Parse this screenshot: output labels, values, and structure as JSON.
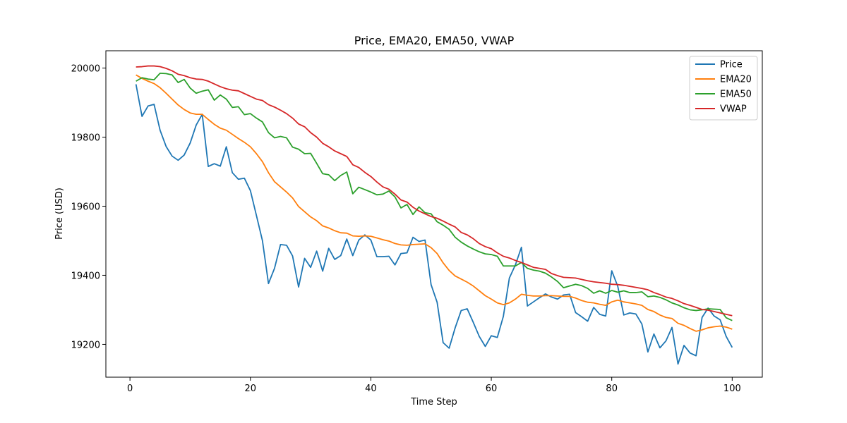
{
  "chart_data": {
    "type": "line",
    "title": "Price, EMA20, EMA50, VWAP",
    "xlabel": "Time Step",
    "ylabel": "Price (USD)",
    "xlim": [
      -4,
      105
    ],
    "ylim": [
      19105,
      20050
    ],
    "xticks": [
      0,
      20,
      40,
      60,
      80,
      100
    ],
    "yticks": [
      19200,
      19400,
      19600,
      19800,
      20000
    ],
    "legend_position": "top-right",
    "grid": false,
    "x": [
      1,
      2,
      3,
      4,
      5,
      6,
      7,
      8,
      9,
      10,
      11,
      12,
      13,
      14,
      15,
      16,
      17,
      18,
      19,
      20,
      21,
      22,
      23,
      24,
      25,
      26,
      27,
      28,
      29,
      30,
      31,
      32,
      33,
      34,
      35,
      36,
      37,
      38,
      39,
      40,
      41,
      42,
      43,
      44,
      45,
      46,
      47,
      48,
      49,
      50,
      51,
      52,
      53,
      54,
      55,
      56,
      57,
      58,
      59,
      60,
      61,
      62,
      63,
      64,
      65,
      66,
      67,
      68,
      69,
      70,
      71,
      72,
      73,
      74,
      75,
      76,
      77,
      78,
      79,
      80,
      81,
      82,
      83,
      84,
      85,
      86,
      87,
      88,
      89,
      90,
      91,
      92,
      93,
      94,
      95,
      96,
      97,
      98,
      99,
      100
    ],
    "series": [
      {
        "name": "Price",
        "color": "#1f77b4",
        "values": [
          19953,
          19860,
          19890,
          19895,
          19820,
          19773,
          19745,
          19733,
          19748,
          19783,
          19835,
          19866,
          19715,
          19723,
          19716,
          19772,
          19697,
          19678,
          19681,
          19645,
          19573,
          19500,
          19376,
          19420,
          19489,
          19487,
          19456,
          19366,
          19449,
          19423,
          19470,
          19412,
          19478,
          19446,
          19457,
          19505,
          19457,
          19502,
          19517,
          19502,
          19454,
          19454,
          19455,
          19430,
          19463,
          19465,
          19510,
          19498,
          19502,
          19373,
          19322,
          19205,
          19189,
          19248,
          19298,
          19303,
          19264,
          19223,
          19194,
          19225,
          19220,
          19281,
          19392,
          19430,
          19481,
          19311,
          19323,
          19335,
          19346,
          19337,
          19331,
          19343,
          19345,
          19292,
          19280,
          19267,
          19307,
          19287,
          19282,
          19413,
          19368,
          19285,
          19291,
          19288,
          19259,
          19178,
          19230,
          19190,
          19210,
          19249,
          19143,
          19197,
          19175,
          19167,
          19278,
          19305,
          19282,
          19271,
          19223,
          19191
        ]
      },
      {
        "name": "EMA20",
        "color": "#ff7f0e",
        "values": [
          19980,
          19970,
          19962,
          19955,
          19943,
          19927,
          19910,
          19893,
          19880,
          19870,
          19866,
          19866,
          19851,
          19837,
          19826,
          19820,
          19808,
          19796,
          19785,
          19772,
          19752,
          19729,
          19697,
          19671,
          19656,
          19641,
          19624,
          19599,
          19584,
          19569,
          19558,
          19543,
          19537,
          19529,
          19523,
          19522,
          19514,
          19513,
          19514,
          19513,
          19508,
          19503,
          19499,
          19492,
          19488,
          19487,
          19489,
          19490,
          19491,
          19480,
          19463,
          19436,
          19414,
          19398,
          19389,
          19380,
          19369,
          19355,
          19341,
          19331,
          19320,
          19315,
          19320,
          19331,
          19345,
          19342,
          19340,
          19340,
          19341,
          19341,
          19340,
          19339,
          19339,
          19334,
          19327,
          19322,
          19320,
          19316,
          19313,
          19323,
          19328,
          19323,
          19320,
          19317,
          19313,
          19301,
          19295,
          19285,
          19278,
          19275,
          19261,
          19255,
          19246,
          19238,
          19242,
          19248,
          19251,
          19253,
          19250,
          19244
        ]
      },
      {
        "name": "EMA50",
        "color": "#2ca02c",
        "values": [
          19962,
          19972,
          19968,
          19966,
          19985,
          19984,
          19980,
          19958,
          19967,
          19942,
          19927,
          19933,
          19937,
          19907,
          19922,
          19910,
          19886,
          19888,
          19865,
          19868,
          19855,
          19844,
          19813,
          19798,
          19802,
          19798,
          19771,
          19765,
          19752,
          19753,
          19724,
          19694,
          19691,
          19674,
          19689,
          19699,
          19636,
          19655,
          19648,
          19641,
          19633,
          19635,
          19644,
          19627,
          19595,
          19605,
          19576,
          19598,
          19581,
          19578,
          19555,
          19545,
          19533,
          19510,
          19496,
          19485,
          19476,
          19468,
          19462,
          19460,
          19455,
          19427,
          19427,
          19427,
          19437,
          19420,
          19415,
          19412,
          19406,
          19395,
          19382,
          19364,
          19369,
          19374,
          19370,
          19362,
          19348,
          19355,
          19348,
          19356,
          19351,
          19355,
          19350,
          19350,
          19352,
          19338,
          19340,
          19336,
          19329,
          19320,
          19314,
          19306,
          19300,
          19298,
          19300,
          19303,
          19302,
          19301,
          19277,
          19269
        ]
      },
      {
        "name": "VWAP",
        "color": "#d62728",
        "values": [
          20003,
          20004,
          20006,
          20006,
          20004,
          19999,
          19992,
          19982,
          19978,
          19972,
          19968,
          19967,
          19962,
          19954,
          19946,
          19940,
          19936,
          19934,
          19926,
          19918,
          19910,
          19906,
          19894,
          19887,
          19878,
          19868,
          19855,
          19838,
          19830,
          19813,
          19800,
          19782,
          19772,
          19760,
          19752,
          19744,
          19720,
          19712,
          19698,
          19686,
          19670,
          19656,
          19649,
          19635,
          19618,
          19612,
          19597,
          19586,
          19578,
          19570,
          19565,
          19557,
          19548,
          19540,
          19524,
          19517,
          19506,
          19492,
          19483,
          19477,
          19465,
          19455,
          19450,
          19443,
          19437,
          19430,
          19423,
          19420,
          19417,
          19405,
          19399,
          19394,
          19393,
          19392,
          19388,
          19384,
          19381,
          19379,
          19377,
          19374,
          19373,
          19371,
          19368,
          19365,
          19362,
          19358,
          19350,
          19344,
          19337,
          19333,
          19326,
          19318,
          19313,
          19307,
          19301,
          19299,
          19295,
          19291,
          19287,
          19283
        ]
      }
    ]
  }
}
